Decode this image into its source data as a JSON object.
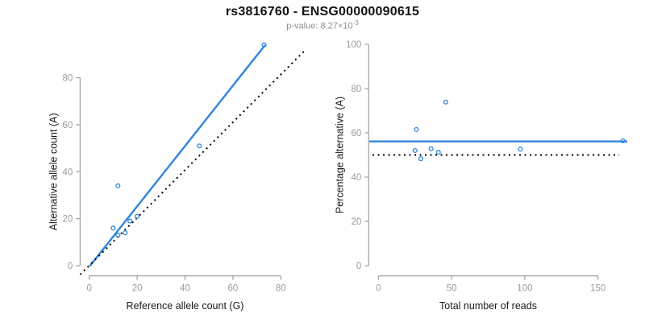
{
  "header": {
    "title": "rs3816760 - ENSG00000090615",
    "p_value_prefix": "p-value: 8.27×10",
    "p_value_exponent": "-3"
  },
  "colors": {
    "accent_blue": "#2e86de",
    "dotted_black": "#000000",
    "axis_line": "#8e8e8e",
    "tick_label": "#9b9b9b",
    "axis_title": "#1a1a1a"
  },
  "chart_data": [
    {
      "type": "scatter",
      "name": "allele-counts-panel",
      "xlabel": "Reference allele count (G)",
      "ylabel": "Alternative allele count (A)",
      "xticks": [
        0,
        20,
        40,
        60,
        80
      ],
      "yticks": [
        0,
        20,
        40,
        60,
        80
      ],
      "xlim": [
        -4,
        91
      ],
      "ylim": [
        -4.3,
        95
      ],
      "grid": false,
      "points": [
        [
          73,
          94
        ],
        [
          46,
          51
        ],
        [
          12,
          34
        ],
        [
          20,
          21
        ],
        [
          17,
          19
        ],
        [
          10,
          16
        ],
        [
          15,
          14
        ],
        [
          12,
          13
        ]
      ],
      "lines": [
        {
          "name": "fit-line",
          "style": "solid",
          "color": "blue",
          "width": 2.4,
          "from": [
            0.2,
            -0.2
          ],
          "to": [
            73.4,
            93.9
          ]
        },
        {
          "name": "identity-line",
          "style": "dotted",
          "color": "black",
          "width": 2,
          "from": [
            -3.8,
            -3.8
          ],
          "to": [
            90.2,
            91.8
          ]
        }
      ]
    },
    {
      "type": "scatter",
      "name": "percentage-reads-panel",
      "xlabel": "Total number of reads",
      "ylabel": "Percentage alternative (A)",
      "xticks": [
        0,
        50,
        100,
        150
      ],
      "yticks": [
        0,
        20,
        40,
        60,
        80,
        100
      ],
      "xlim": [
        -6.5,
        170
      ],
      "ylim": [
        -4.6,
        104.5
      ],
      "grid": false,
      "points": [
        [
          167,
          56.4
        ],
        [
          97,
          52.6
        ],
        [
          46,
          73.9
        ],
        [
          41,
          51.2
        ],
        [
          36,
          52.8
        ],
        [
          26,
          61.5
        ],
        [
          29,
          48.3
        ],
        [
          25,
          52.0
        ]
      ],
      "lines": [
        {
          "name": "mean-percentage-line",
          "style": "solid",
          "color": "blue",
          "width": 2.4,
          "from": [
            -6.2,
            56.1
          ],
          "to": [
            170,
            56.1
          ]
        },
        {
          "name": "null-50-percent-line",
          "style": "dotted",
          "color": "black",
          "width": 2,
          "from": [
            -4,
            50
          ],
          "to": [
            164.5,
            50
          ]
        }
      ]
    }
  ]
}
